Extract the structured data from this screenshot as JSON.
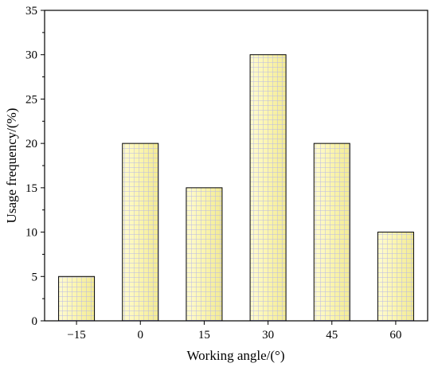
{
  "chart_data": {
    "type": "bar",
    "categories": [
      "−15",
      "0",
      "15",
      "30",
      "45",
      "60"
    ],
    "values": [
      5,
      20,
      15,
      30,
      20,
      10
    ],
    "xlabel": "Working angle/(°)",
    "ylabel": "Usage frequency/(%)",
    "ylim": [
      0,
      35
    ],
    "yticks": [
      0,
      5,
      10,
      15,
      20,
      25,
      30,
      35
    ],
    "grid": false,
    "bar_fill": "#fbf5ae",
    "bar_hatch": "#b8b8e6",
    "bar_edge": "#000000"
  }
}
